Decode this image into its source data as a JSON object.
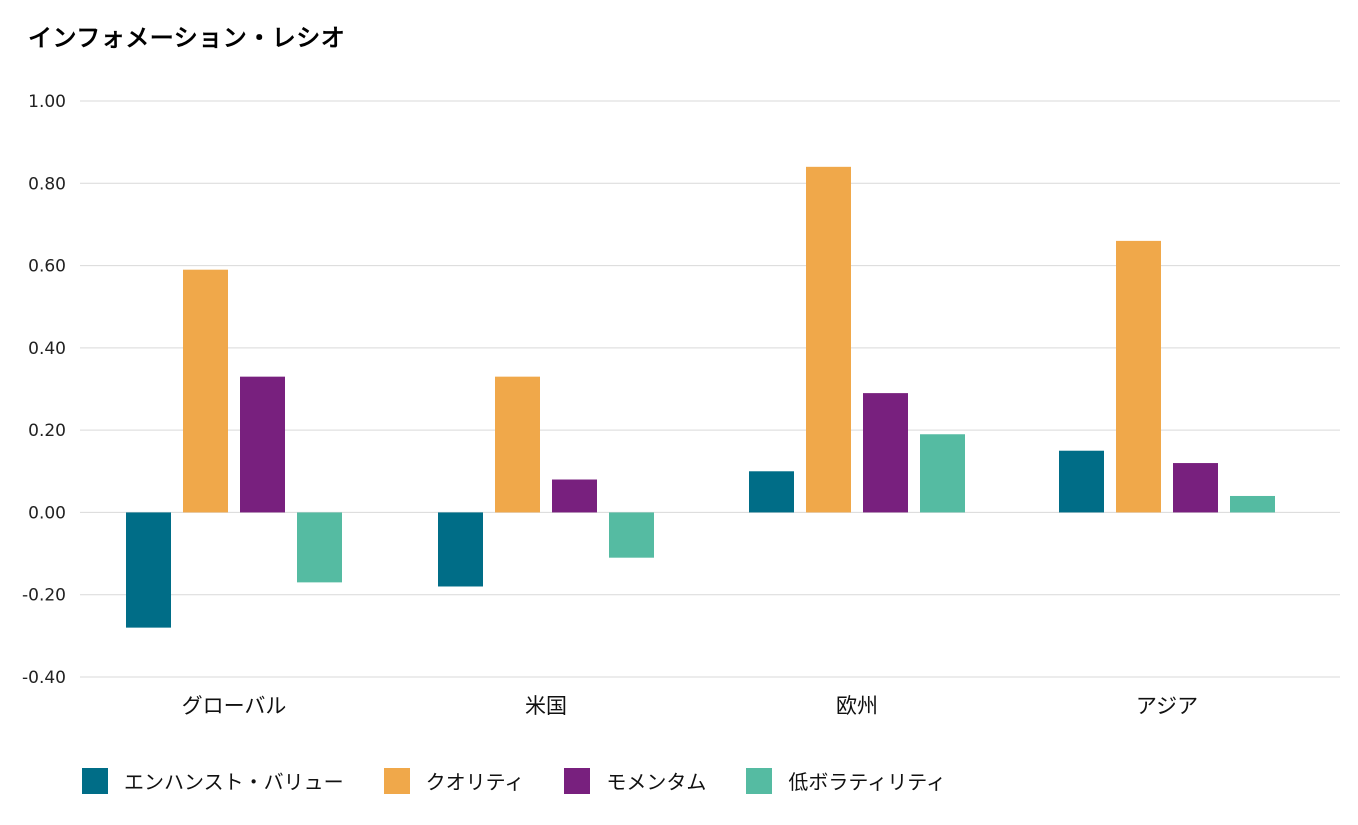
{
  "chart_data": {
    "type": "bar",
    "title": "インフォメーション・レシオ",
    "categories": [
      "グローバル",
      "米国",
      "欧州",
      "アジア"
    ],
    "series": [
      {
        "name": "エンハンスト・バリュー",
        "color": "#006D87",
        "values": [
          -0.28,
          -0.18,
          0.1,
          0.15
        ]
      },
      {
        "name": "クオリティ",
        "color": "#F0A84A",
        "values": [
          0.59,
          0.33,
          0.84,
          0.66
        ]
      },
      {
        "name": "モメンタム",
        "color": "#78207E",
        "values": [
          0.33,
          0.08,
          0.29,
          0.12
        ]
      },
      {
        "name": "低ボラティリティ",
        "color": "#55BBA2",
        "values": [
          -0.17,
          -0.11,
          0.19,
          0.04
        ]
      }
    ],
    "ylim": [
      -0.4,
      1.0
    ],
    "yticks": [
      "1.00",
      "0.80",
      "0.60",
      "0.40",
      "0.20",
      "0.00",
      "-0.20",
      "-0.40"
    ],
    "ytick_values": [
      1.0,
      0.8,
      0.6,
      0.4,
      0.2,
      0.0,
      -0.2,
      -0.4
    ],
    "xlabel": "",
    "ylabel": "",
    "grid": true,
    "legend_position": "bottom-left"
  }
}
